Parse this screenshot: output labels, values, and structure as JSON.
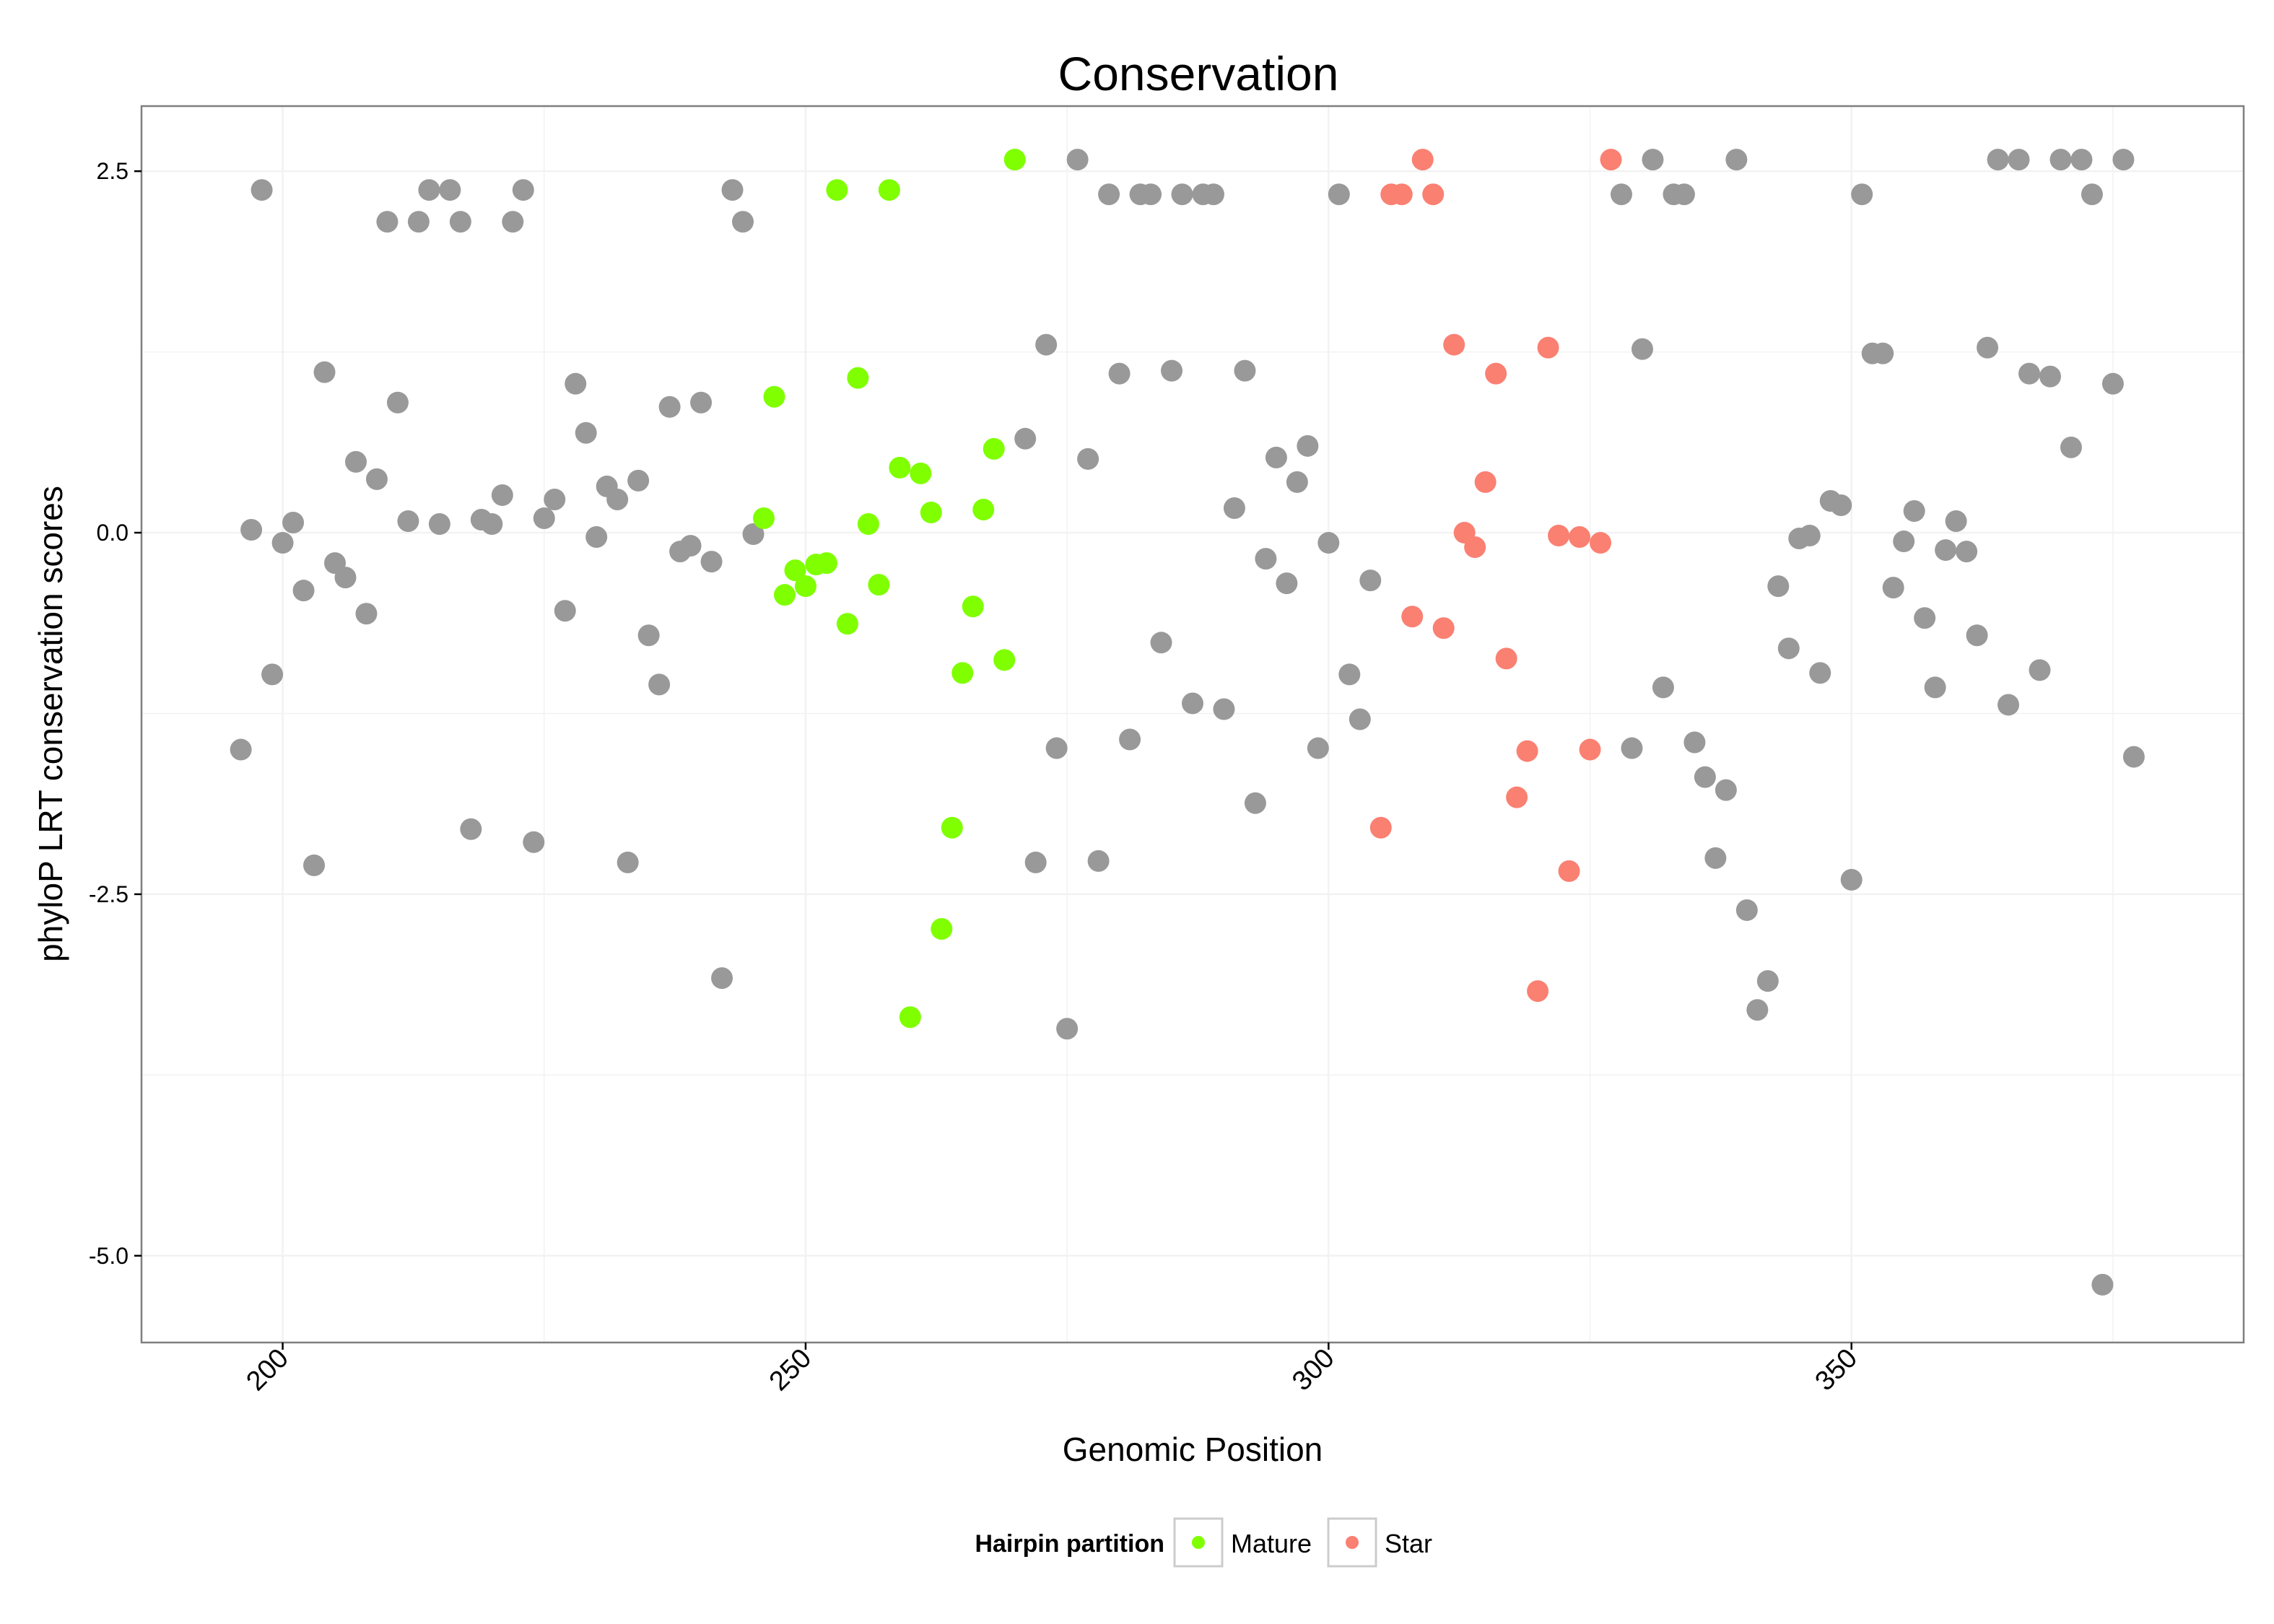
{
  "chart_data": {
    "type": "scatter",
    "title": "Conservation",
    "xlabel": "Genomic Position",
    "ylabel": "phyloP LRT conservation scores",
    "xlim": [
      186.5,
      387.5
    ],
    "ylim": [
      -5.6,
      2.95
    ],
    "x_ticks": [
      200,
      250,
      300,
      350
    ],
    "x_tick_labels": [
      "200",
      "250",
      "300",
      "350"
    ],
    "y_ticks": [
      2.5,
      0,
      -2.5,
      -5
    ],
    "y_tick_labels": [
      "2.5",
      "0.0",
      "-2.5",
      "-5.0"
    ],
    "x_minor_ticks": [
      225,
      275,
      325,
      375
    ],
    "y_minor_ticks": [
      1.25,
      -1.25,
      -3.75
    ],
    "grid": true,
    "legend": {
      "title": "Hairpin partition",
      "position": "bottom",
      "entries": [
        {
          "label": "Mature",
          "color": "#7fff00"
        },
        {
          "label": "Star",
          "color": "#fa8072"
        }
      ]
    },
    "colors": {
      "other": "#999999",
      "mature": "#7fff00",
      "star": "#fa8072",
      "panel_border": "#7f7f7f",
      "grid": "#f2f2f2"
    },
    "series": [
      {
        "key": "other",
        "x": [
          196,
          197,
          198,
          199,
          200,
          201,
          202,
          203,
          204,
          205,
          206,
          207,
          208,
          209,
          210,
          211,
          212,
          213,
          214,
          215,
          216,
          217,
          218,
          219,
          220,
          221,
          222,
          223,
          224,
          225,
          226,
          227,
          228,
          229,
          230,
          231,
          232,
          233,
          234,
          235,
          236,
          237,
          238,
          239,
          240,
          241,
          242,
          243,
          244,
          245,
          271,
          272,
          273,
          274,
          275,
          276,
          277,
          278,
          279,
          280,
          281,
          282,
          283,
          284,
          285,
          286,
          287,
          288,
          289,
          290,
          291,
          292,
          293,
          294,
          295,
          296,
          297,
          298,
          299,
          300,
          301,
          302,
          303,
          304,
          328,
          329,
          330,
          331,
          332,
          333,
          334,
          335,
          336,
          337,
          338,
          339,
          340,
          341,
          342,
          343,
          344,
          345,
          346,
          347,
          348,
          349,
          350,
          351,
          352,
          353,
          354,
          355,
          356,
          357,
          358,
          359,
          360,
          361,
          362,
          363,
          364,
          365,
          366,
          367,
          368,
          369,
          370,
          371,
          372,
          373,
          374,
          375,
          376,
          377
        ],
        "y": [
          -1.5,
          0.02,
          2.37,
          -0.98,
          -0.07,
          0.07,
          -0.4,
          -2.3,
          1.11,
          -0.21,
          -0.31,
          0.49,
          -0.56,
          0.37,
          2.15,
          0.9,
          0.08,
          2.15,
          2.37,
          0.06,
          2.37,
          2.15,
          -2.05,
          0.09,
          0.06,
          0.26,
          2.15,
          2.37,
          -2.14,
          0.1,
          0.23,
          -0.54,
          1.03,
          0.69,
          -0.03,
          0.32,
          0.23,
          -2.28,
          0.36,
          -0.71,
          -1.05,
          0.87,
          -0.13,
          -0.09,
          0.9,
          -0.2,
          -3.08,
          2.37,
          2.15,
          -0.01,
          0.65,
          -2.28,
          1.3,
          -1.49,
          -3.43,
          2.58,
          0.51,
          -2.27,
          2.34,
          1.1,
          -1.43,
          2.34,
          2.34,
          -0.76,
          1.12,
          2.34,
          -1.18,
          2.34,
          2.34,
          -1.22,
          0.17,
          1.12,
          -1.87,
          -0.18,
          0.52,
          -0.35,
          0.35,
          0.6,
          -1.49,
          -0.07,
          2.34,
          -0.98,
          -1.29,
          -0.33,
          2.34,
          -1.49,
          1.27,
          2.58,
          -1.07,
          2.34,
          2.34,
          -1.45,
          -1.69,
          -2.25,
          -1.78,
          2.58,
          -2.61,
          -3.3,
          -3.1,
          -0.37,
          -0.8,
          -0.04,
          -0.02,
          -0.97,
          0.22,
          0.19,
          -2.4,
          2.34,
          1.24,
          1.24,
          -0.38,
          -0.06,
          0.15,
          -0.59,
          -1.07,
          -0.12,
          0.08,
          -0.13,
          -0.71,
          1.28,
          2.58,
          -1.19,
          2.58,
          1.1,
          -0.95,
          1.08,
          2.58,
          0.59,
          2.58,
          2.34,
          -5.2,
          1.03,
          2.58,
          -1.55
        ]
      },
      {
        "key": "mature",
        "name": "Mature",
        "x": [
          246,
          247,
          248,
          249,
          250,
          251,
          252,
          253,
          254,
          255,
          256,
          257,
          258,
          259,
          260,
          261,
          262,
          263,
          264,
          265,
          266,
          267,
          268,
          269,
          270
        ],
        "y": [
          0.1,
          0.94,
          -0.43,
          -0.26,
          -0.37,
          -0.22,
          -0.21,
          2.37,
          -0.63,
          1.07,
          0.06,
          -0.36,
          2.37,
          0.45,
          -3.35,
          0.41,
          0.14,
          -2.74,
          -2.04,
          -0.97,
          -0.51,
          0.16,
          0.58,
          -0.88,
          2.58
        ]
      },
      {
        "key": "star",
        "name": "Star",
        "x": [
          305,
          306,
          307,
          308,
          309,
          310,
          311,
          312,
          313,
          314,
          315,
          316,
          317,
          318,
          319,
          320,
          321,
          322,
          323,
          324,
          325,
          326,
          327
        ],
        "y": [
          -2.04,
          2.34,
          2.34,
          -0.58,
          2.58,
          2.34,
          -0.66,
          1.3,
          0.0,
          -0.1,
          0.35,
          1.1,
          -0.87,
          -1.83,
          -1.51,
          -3.17,
          1.28,
          -0.02,
          -2.34,
          -0.03,
          -1.5,
          -0.07,
          2.58
        ]
      }
    ]
  }
}
